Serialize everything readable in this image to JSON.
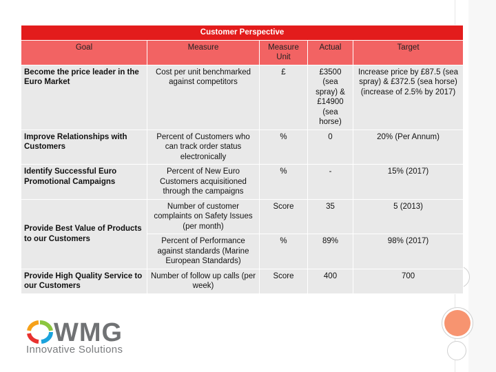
{
  "table": {
    "title": "Customer Perspective",
    "headers": [
      "Goal",
      "Measure",
      "Measure Unit",
      "Actual",
      "Target"
    ],
    "rows": [
      {
        "goal": "Become the price leader in the Euro Market",
        "measure": "Cost per unit benchmarked against  competitors",
        "unit": "£",
        "actual": "£3500 (sea spray) & £14900 (sea horse)",
        "target": "Increase price  by £87.5 (sea spray) & £372.5 (sea horse) (increase of 2.5% by 2017)"
      },
      {
        "goal": "Improve Relationships with Customers",
        "measure": "Percent of  Customers who can track order status electronically",
        "unit": "%",
        "actual": "0",
        "target": "20% (Per Annum)"
      },
      {
        "goal": "Identify Successful Euro Promotional Campaigns",
        "measure": "Percent of New Euro Customers acquisitioned through the campaigns",
        "unit": "%",
        "actual": "-",
        "target": "15% (2017)"
      },
      {
        "goal": "Provide Best Value of Products to our Customers",
        "measure": "Number of customer complaints on Safety Issues (per month)",
        "unit": "Score",
        "actual": "35",
        "target": "5 (2013)"
      },
      {
        "goal": "",
        "measure": "Percent of Performance against standards (Marine European Standards)",
        "unit": "%",
        "actual": "89%",
        "target": "98% (2017)"
      },
      {
        "goal": "Provide High Quality Service to our Customers",
        "measure": "Number of follow up calls (per week)",
        "unit": "Score",
        "actual": "400",
        "target": "700"
      }
    ]
  },
  "logo": {
    "name": "WMG",
    "tagline": "Innovative Solutions",
    "colors": [
      "#e8312f",
      "#f6a11a",
      "#8cc63f",
      "#1aa3dd"
    ]
  },
  "colors": {
    "title_bg": "#e31c1c",
    "header_bg": "#f26363",
    "cell_bg": "#e9e9e9",
    "accent_circle": "#f79470"
  }
}
